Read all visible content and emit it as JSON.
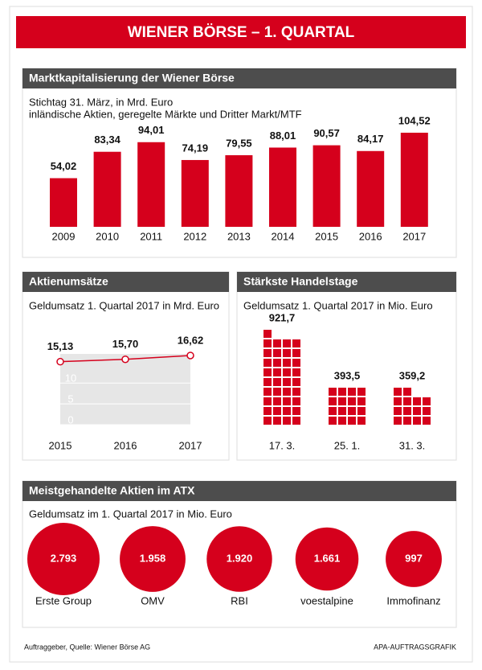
{
  "header": {
    "title": "WIENER BÖRSE – 1. QUARTAL"
  },
  "chart_data": [
    {
      "type": "bar",
      "title": "Marktkapitalisierung der Wiener  Börse",
      "subtitle": [
        "Stichtag 31. März, in Mrd. Euro",
        "inländische Aktien, geregelte Märkte und Dritter Markt/MTF"
      ],
      "categories": [
        "2009",
        "2010",
        "2011",
        "2012",
        "2013",
        "2014",
        "2015",
        "2016",
        "2017"
      ],
      "values": [
        54.02,
        83.34,
        94.01,
        74.19,
        79.55,
        88.01,
        90.57,
        84.17,
        104.52
      ],
      "value_labels": [
        "54,02",
        "83,34",
        "94,01",
        "74,19",
        "79,55",
        "88,01",
        "90,57",
        "84,17",
        "104,52"
      ],
      "color": "#d5001c"
    },
    {
      "type": "line",
      "title": "Aktienumsätze",
      "subtitle": "Geldumsatz 1. Quartal 2017 in Mrd. Euro",
      "categories": [
        "2015",
        "2016",
        "2017"
      ],
      "values": [
        15.13,
        15.7,
        16.62
      ],
      "value_labels": [
        "15,13",
        "15,70",
        "16,62"
      ],
      "ylim": [
        0,
        17
      ],
      "yticks": [
        0,
        5,
        10
      ],
      "color": "#d5001c"
    },
    {
      "type": "pictogram",
      "title": "Stärkste Handelstage",
      "subtitle": "Geldumsatz 1. Quartal 2017 in Mio. Euro",
      "categories": [
        "17. 3.",
        "25. 1.",
        "31. 3."
      ],
      "values": [
        921.7,
        393.5,
        359.2
      ],
      "value_labels": [
        "921,7",
        "393,5",
        "359,2"
      ],
      "color": "#d5001c"
    },
    {
      "type": "bubble",
      "title": "Meistgehandelte Aktien im ATX",
      "subtitle": "Geldumsatz im 1. Quartal 2017 in Mio. Euro",
      "categories": [
        "Erste Group",
        "OMV",
        "RBI",
        "voestalpine",
        "Immofinanz"
      ],
      "values": [
        2793,
        1958,
        1920,
        1661,
        997
      ],
      "value_labels": [
        "2.793",
        "1.958",
        "1.920",
        "1.661",
        "997"
      ],
      "color": "#d5001c"
    }
  ],
  "footer": {
    "source": "Auftraggeber, Quelle: Wiener Börse AG",
    "credit": "APA-AUFTRAGSGRAFIK"
  }
}
